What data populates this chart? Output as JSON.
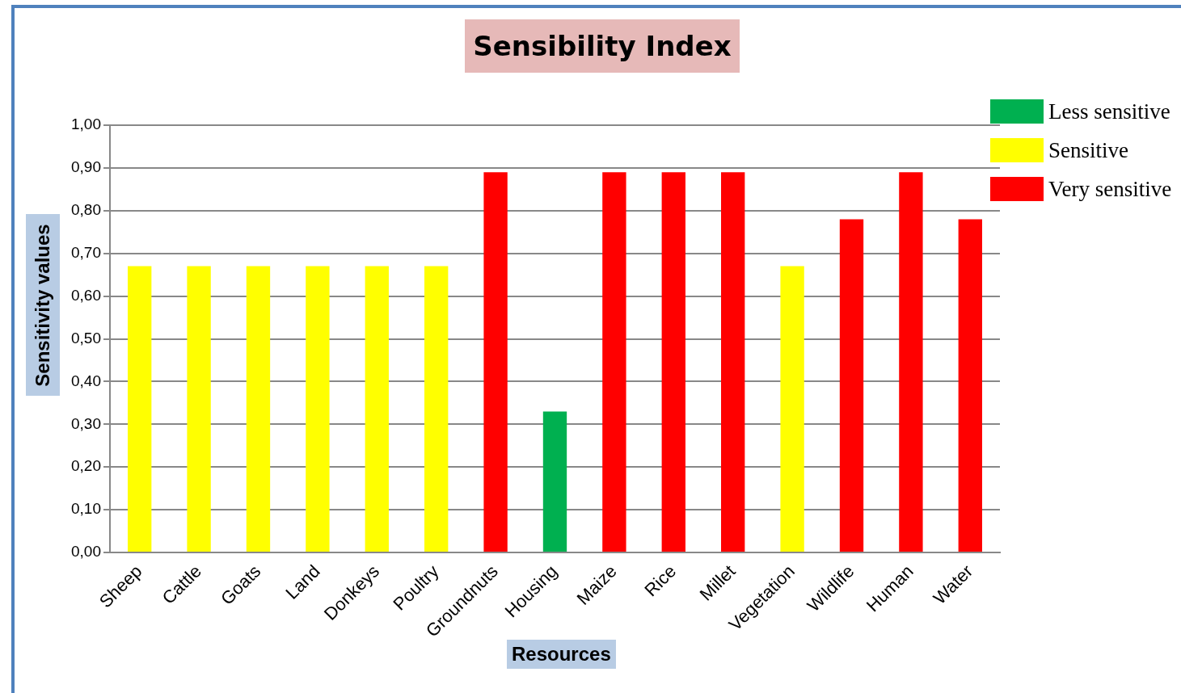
{
  "chart_data": {
    "type": "bar",
    "title": "Sensibility Index",
    "xlabel": "Resources",
    "ylabel": "Sensitivity values",
    "categories": [
      "Sheep",
      "Cattle",
      "Goats",
      "Land",
      "Donkeys",
      "Poultry",
      "Groundnuts",
      "Housing",
      "Maize",
      "Rice",
      "Millet",
      "Vegetation",
      "Wildlife",
      "Human",
      "Water"
    ],
    "series": [
      {
        "name": "Less sensitive",
        "color": "#00b050",
        "values": [
          null,
          null,
          null,
          null,
          null,
          null,
          null,
          0.33,
          null,
          null,
          null,
          null,
          null,
          null,
          null
        ]
      },
      {
        "name": "Sensitive",
        "color": "#ffff00",
        "values": [
          0.67,
          0.67,
          0.67,
          0.67,
          0.67,
          0.67,
          null,
          null,
          null,
          null,
          null,
          0.67,
          null,
          null,
          null
        ]
      },
      {
        "name": "Very sensitive",
        "color": "#ff0000",
        "values": [
          null,
          null,
          null,
          null,
          null,
          null,
          0.89,
          null,
          0.89,
          0.89,
          0.89,
          null,
          0.78,
          0.89,
          0.78
        ]
      }
    ],
    "ylim": [
      0,
      1
    ],
    "yticks": [
      {
        "value": 0,
        "label": "0,00"
      },
      {
        "value": 0.1,
        "label": "0,10"
      },
      {
        "value": 0.2,
        "label": "0,20"
      },
      {
        "value": 0.3,
        "label": "0,30"
      },
      {
        "value": 0.4,
        "label": "0,40"
      },
      {
        "value": 0.5,
        "label": "0,50"
      },
      {
        "value": 0.6,
        "label": "0,60"
      },
      {
        "value": 0.7,
        "label": "0,70"
      },
      {
        "value": 0.8,
        "label": "0,80"
      },
      {
        "value": 0.9,
        "label": "0,90"
      },
      {
        "value": 1,
        "label": "1,00"
      }
    ],
    "grid": "y",
    "legend": "top right"
  }
}
